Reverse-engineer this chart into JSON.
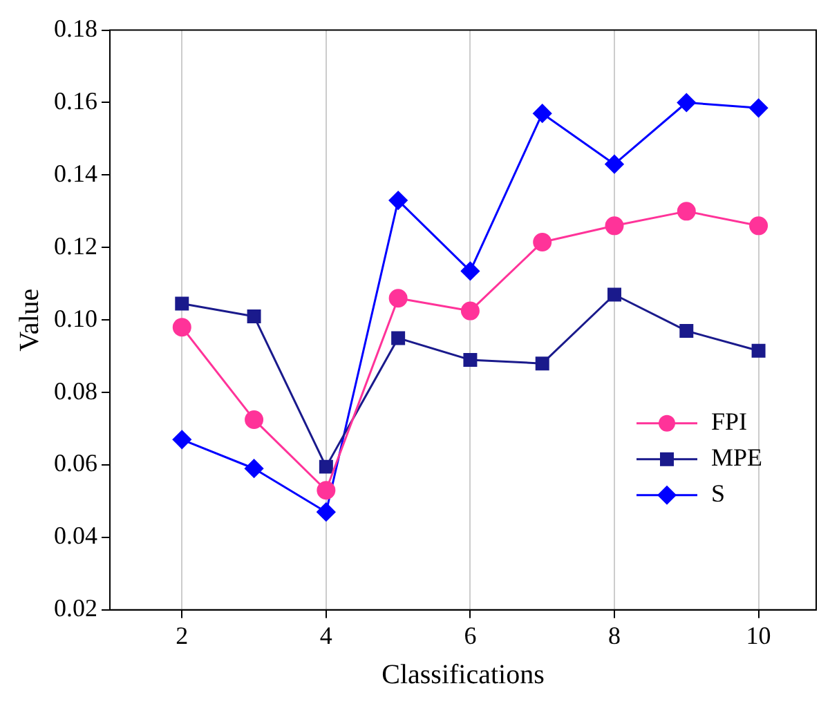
{
  "chart_data": {
    "type": "line",
    "xlabel": "Classifications",
    "ylabel": "Value",
    "x": [
      2,
      3,
      4,
      5,
      6,
      7,
      8,
      9,
      10
    ],
    "series": [
      {
        "name": "FPI",
        "color": "#ff3399",
        "marker": "circle",
        "values": [
          0.098,
          0.0725,
          0.053,
          0.106,
          0.1025,
          0.1215,
          0.126,
          0.13,
          0.126
        ]
      },
      {
        "name": "MPE",
        "color": "#1a1a8c",
        "marker": "square",
        "values": [
          0.1045,
          0.101,
          0.0595,
          0.095,
          0.089,
          0.088,
          0.107,
          0.097,
          0.0915
        ]
      },
      {
        "name": "S",
        "color": "#0000ff",
        "marker": "diamond",
        "values": [
          0.067,
          0.059,
          0.047,
          0.133,
          0.1135,
          0.157,
          0.143,
          0.16,
          0.1585
        ]
      }
    ],
    "xlim": [
      1,
      10.8
    ],
    "xticks": [
      2,
      4,
      6,
      8,
      10
    ],
    "ylim": [
      0.02,
      0.18
    ],
    "yticks": [
      0.02,
      0.04,
      0.06,
      0.08,
      {
        "value": 0.1,
        "label": "0.10"
      },
      0.12,
      0.14,
      0.16,
      0.18
    ],
    "grid": "x",
    "legend": "bottom right",
    "line_style": "solid"
  }
}
